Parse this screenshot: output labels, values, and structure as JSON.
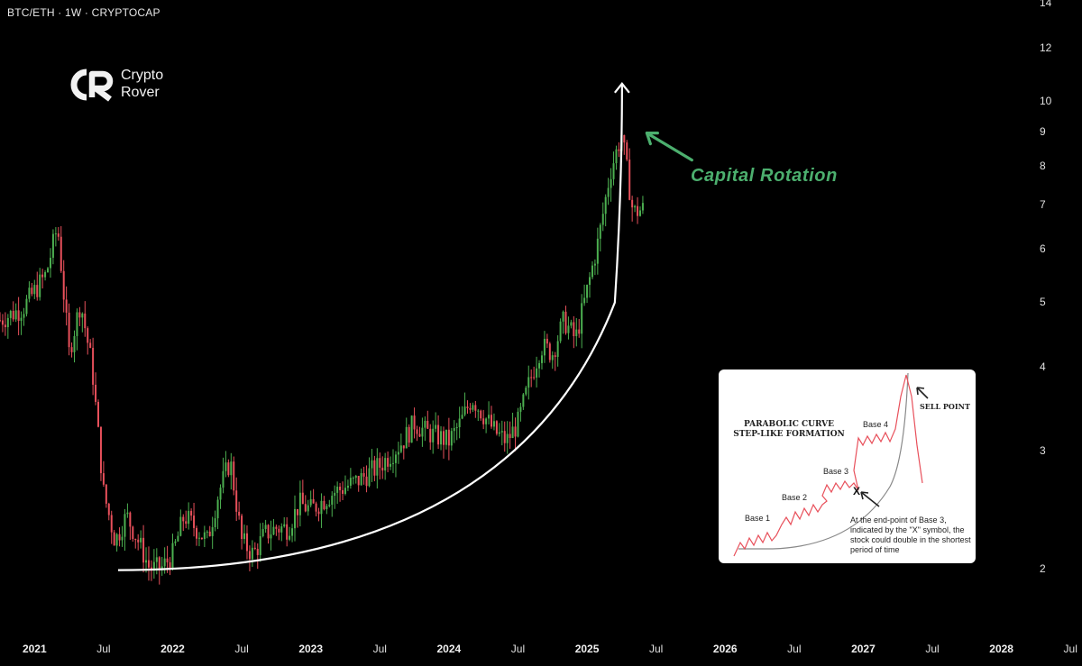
{
  "header": {
    "title": "BTC/ETH · 1W · CRYPTOCAP"
  },
  "logo": {
    "line1": "Crypto",
    "line2": "Rover",
    "mark": "CR"
  },
  "colors": {
    "up": "#4caf50",
    "down": "#e8505b",
    "curve": "#ffffff",
    "annotation": "#4caf6e",
    "background": "#000000"
  },
  "annotation": {
    "text": "Capital Rotation"
  },
  "inset": {
    "title_line1": "PARABOLIC CURVE",
    "title_line2": "STEP-LIKE FORMATION",
    "bases": [
      "Base 1",
      "Base 2",
      "Base 3",
      "Base 4"
    ],
    "marker": "X",
    "sell_point": "SELL POINT",
    "note": "At the end-point of Base 3, indicated by the \"X\" symbol, the stock could double in the shortest period of time"
  },
  "chart_data": {
    "type": "candlestick",
    "title": "BTC/ETH · 1W · CRYPTOCAP",
    "y_scale": "log",
    "y_ticks": [
      2,
      3,
      4,
      5,
      6,
      7,
      8,
      9,
      10,
      12,
      14
    ],
    "x_ticks": [
      "2021",
      "Jul",
      "2022",
      "Jul",
      "2023",
      "Jul",
      "2024",
      "Jul",
      "2025",
      "Jul",
      "2026",
      "Jul",
      "2027",
      "Jul",
      "2028",
      "Jul"
    ],
    "x_range": [
      "2020-10",
      "2028-08"
    ],
    "grid": false,
    "series": [
      {
        "points": [
          [
            "2020-10",
            4.7
          ],
          [
            "2020-12",
            4.9
          ],
          [
            "2021-02",
            5.5
          ],
          [
            "2021-03",
            6.5
          ],
          [
            "2021-04",
            4.2
          ],
          [
            "2021-05",
            5.0
          ],
          [
            "2021-06",
            4.0
          ],
          [
            "2021-07",
            2.6
          ],
          [
            "2021-08",
            2.2
          ],
          [
            "2021-09",
            2.4
          ],
          [
            "2021-10",
            2.2
          ],
          [
            "2021-11",
            2.0
          ],
          [
            "2021-12",
            2.0
          ],
          [
            "2022-01",
            2.1
          ],
          [
            "2022-02",
            2.4
          ],
          [
            "2022-03",
            2.3
          ],
          [
            "2022-04",
            2.2
          ],
          [
            "2022-05",
            2.6
          ],
          [
            "2022-06",
            2.9
          ],
          [
            "2022-07",
            2.2
          ],
          [
            "2022-08",
            2.1
          ],
          [
            "2022-09",
            2.25
          ],
          [
            "2022-10",
            2.3
          ],
          [
            "2022-11",
            2.3
          ],
          [
            "2022-12",
            2.5
          ],
          [
            "2023-01",
            2.45
          ],
          [
            "2023-03",
            2.6
          ],
          [
            "2023-05",
            2.7
          ],
          [
            "2023-07",
            2.85
          ],
          [
            "2023-09",
            3.1
          ],
          [
            "2023-10",
            3.3
          ],
          [
            "2023-11",
            3.2
          ],
          [
            "2024-01",
            3.1
          ],
          [
            "2024-02",
            3.3
          ],
          [
            "2024-03",
            3.6
          ],
          [
            "2024-05",
            3.2
          ],
          [
            "2024-06",
            3.1
          ],
          [
            "2024-07",
            3.3
          ],
          [
            "2024-08",
            3.8
          ],
          [
            "2024-09",
            4.3
          ],
          [
            "2024-10",
            4.2
          ],
          [
            "2024-11",
            4.7
          ],
          [
            "2024-12",
            4.4
          ],
          [
            "2025-01",
            5.2
          ],
          [
            "2025-02",
            6.2
          ],
          [
            "2025-03",
            7.8
          ],
          [
            "2025-04",
            8.9
          ],
          [
            "2025-05",
            6.8
          ],
          [
            "2025-06",
            6.9
          ]
        ]
      }
    ],
    "overlays": [
      {
        "type": "parabolic-curve",
        "from": "2021-11",
        "to": "2025-04",
        "arrow": "up"
      }
    ]
  }
}
